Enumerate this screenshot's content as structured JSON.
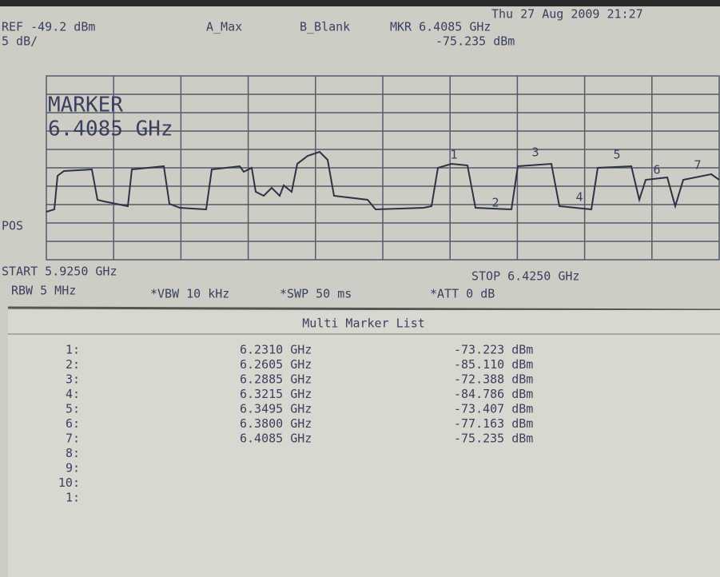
{
  "status": {
    "date": "Thu 27 Aug 2009 21:27"
  },
  "header": {
    "ref": "REF -49.2 dBm",
    "scale": "5 dB/",
    "trace_a": "A_Max",
    "trace_b": "B_Blank",
    "marker": "MKR 6.4085 GHz",
    "marker_level": "-75.235 dBm"
  },
  "screen": {
    "marker_label": "MARKER",
    "marker_freq": "6.4085 GHz",
    "pos": "POS",
    "trace_markers": [
      "1",
      "2",
      "3",
      "4",
      "5",
      "6",
      "7"
    ]
  },
  "footer": {
    "start": "START 5.9250 GHz",
    "stop": "STOP 6.4250 GHz",
    "rbw": "RBW 5 MHz",
    "vbw": "*VBW 10 kHz",
    "swp": "*SWP 50 ms",
    "att": "*ATT 0 dB"
  },
  "table": {
    "title": "Multi Marker List",
    "rows": [
      [
        "1:",
        "6.2310 GHz",
        "-73.223 dBm"
      ],
      [
        "2:",
        "6.2605 GHz",
        "-85.110 dBm"
      ],
      [
        "3:",
        "6.2885 GHz",
        "-72.388 dBm"
      ],
      [
        "4:",
        "6.3215 GHz",
        "-84.786 dBm"
      ],
      [
        "5:",
        "6.3495 GHz",
        "-73.407 dBm"
      ],
      [
        "6:",
        "6.3800 GHz",
        "-77.163 dBm"
      ],
      [
        "7:",
        "6.4085 GHz",
        "-75.235 dBm"
      ],
      [
        "8:"
      ],
      [
        "9:"
      ],
      [
        "10:"
      ],
      [
        "1:"
      ]
    ]
  }
}
